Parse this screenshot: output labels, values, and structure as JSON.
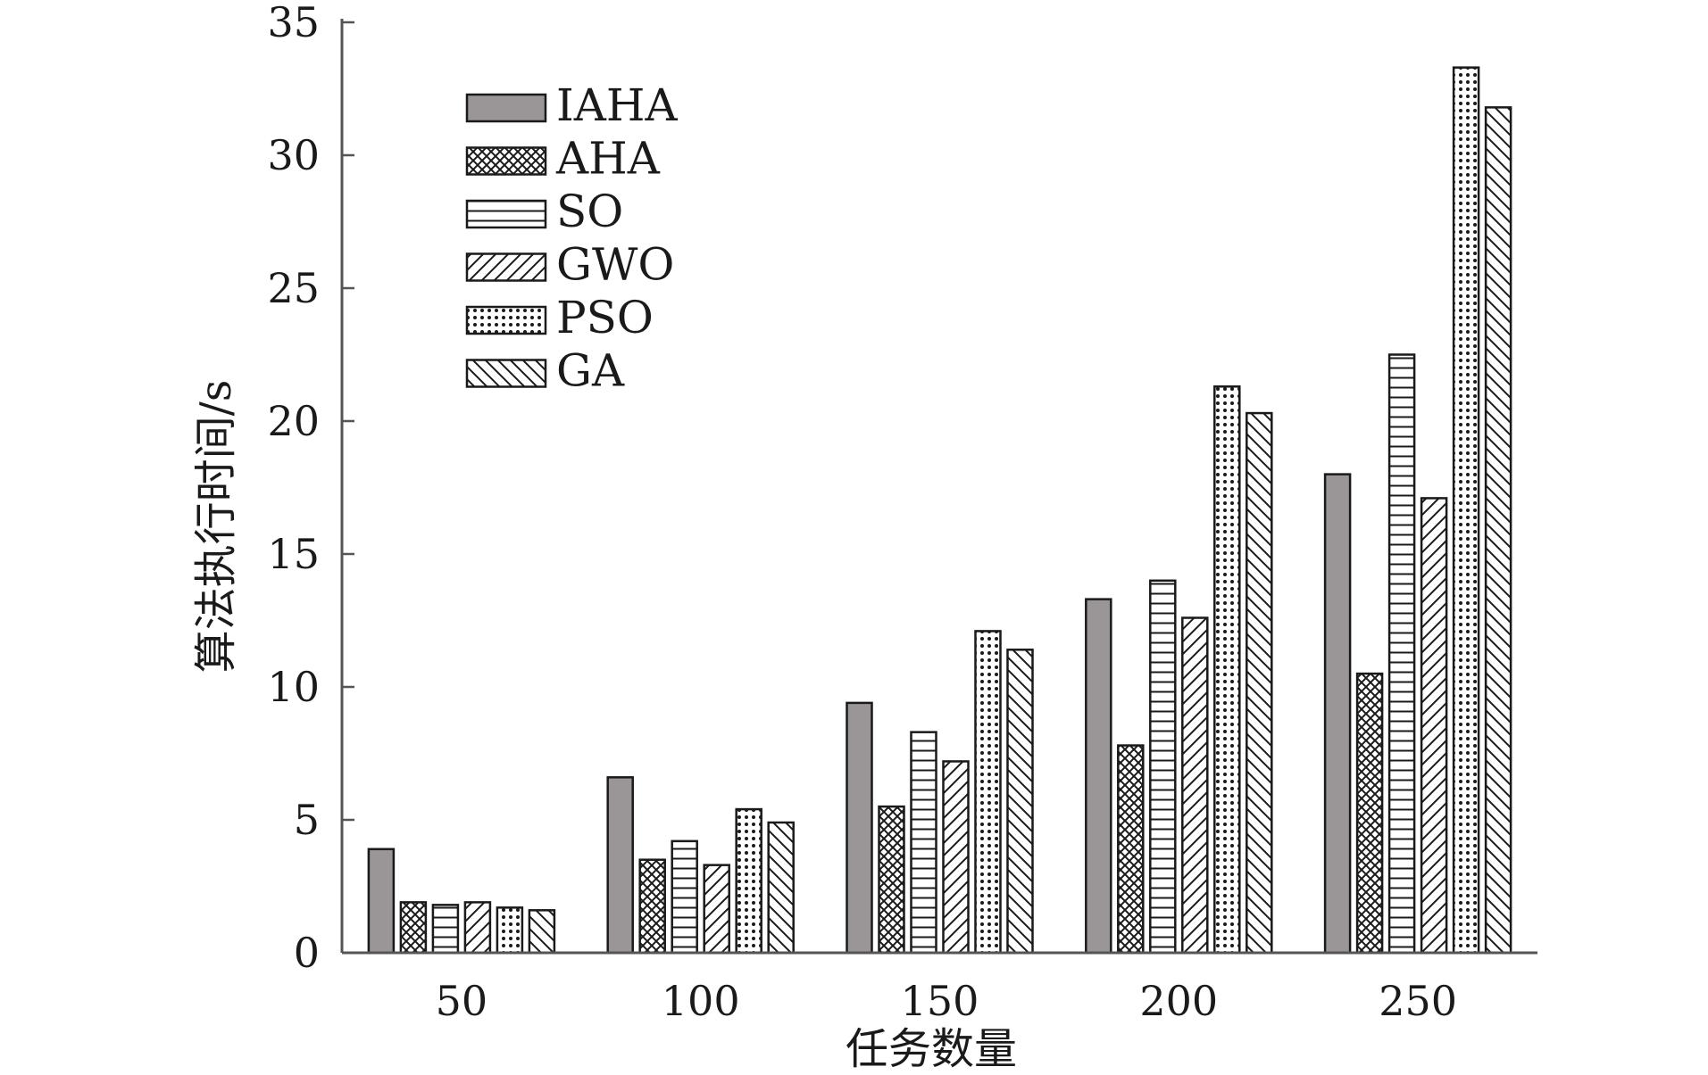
{
  "chart_data": {
    "type": "bar",
    "xlabel": "任务数量",
    "ylabel": "算法执行时间/s",
    "ylim": [
      0,
      35
    ],
    "yticks": [
      0,
      5,
      10,
      15,
      20,
      25,
      30,
      35
    ],
    "categories": [
      "50",
      "100",
      "150",
      "200",
      "250"
    ],
    "grid": false,
    "legend_position": "top-left",
    "series": [
      {
        "name": "IAHA",
        "pattern": "solid-gray",
        "values": [
          3.9,
          6.6,
          9.4,
          13.3,
          18.0
        ]
      },
      {
        "name": "AHA",
        "pattern": "crosshatch",
        "values": [
          1.9,
          3.5,
          5.5,
          7.8,
          10.5
        ]
      },
      {
        "name": "SO",
        "pattern": "horizontal-lines",
        "values": [
          1.8,
          4.2,
          8.3,
          14.0,
          22.5
        ]
      },
      {
        "name": "GWO",
        "pattern": "diagonal-up",
        "values": [
          1.9,
          3.3,
          7.2,
          12.6,
          17.1
        ]
      },
      {
        "name": "PSO",
        "pattern": "dots",
        "values": [
          1.7,
          5.4,
          12.1,
          21.3,
          33.3
        ]
      },
      {
        "name": "GA",
        "pattern": "diagonal-down",
        "values": [
          1.6,
          4.9,
          11.4,
          20.3,
          31.8
        ]
      }
    ],
    "colors": {
      "solid": "#9a9596",
      "stroke": "#1a1a1a"
    }
  }
}
